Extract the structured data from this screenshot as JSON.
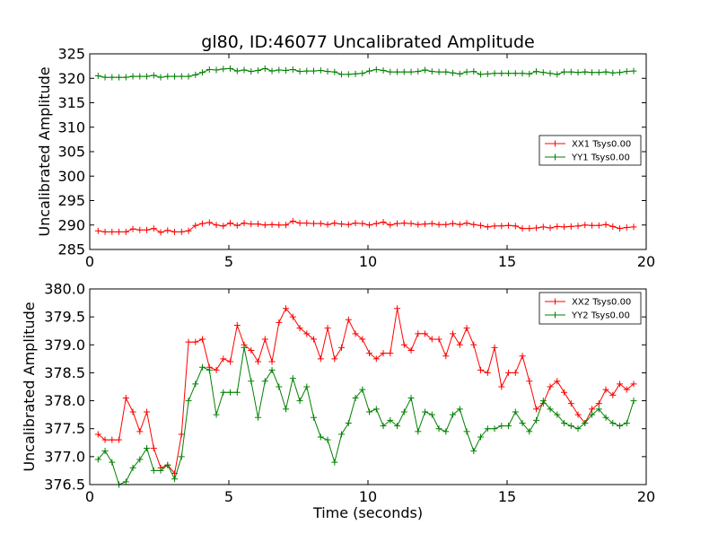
{
  "chart_data": [
    {
      "type": "line",
      "title": "gl80, ID:46077 Uncalibrated Amplitude",
      "xlabel": "",
      "ylabel": "Uncalibrated Amplitude",
      "xlim": [
        0,
        20
      ],
      "ylim": [
        285,
        325
      ],
      "xticks": [
        0,
        5,
        10,
        15,
        20
      ],
      "yticks": [
        285,
        290,
        295,
        300,
        305,
        310,
        315,
        320,
        325
      ],
      "legend": "center-right",
      "marker": "+",
      "grid": false,
      "x": [
        0.3,
        0.55,
        0.8,
        1.05,
        1.3,
        1.55,
        1.8,
        2.05,
        2.3,
        2.55,
        2.8,
        3.05,
        3.3,
        3.55,
        3.8,
        4.05,
        4.3,
        4.55,
        4.8,
        5.05,
        5.3,
        5.55,
        5.8,
        6.05,
        6.3,
        6.55,
        6.8,
        7.05,
        7.3,
        7.55,
        7.8,
        8.05,
        8.3,
        8.55,
        8.8,
        9.05,
        9.3,
        9.55,
        9.8,
        10.05,
        10.3,
        10.55,
        10.8,
        11.05,
        11.3,
        11.55,
        11.8,
        12.05,
        12.3,
        12.55,
        12.8,
        13.05,
        13.3,
        13.55,
        13.8,
        14.05,
        14.3,
        14.55,
        14.8,
        15.05,
        15.3,
        15.55,
        15.8,
        16.05,
        16.3,
        16.55,
        16.8,
        17.05,
        17.3,
        17.55,
        17.8,
        18.05,
        18.3,
        18.55,
        18.8,
        19.05,
        19.3,
        19.55
      ],
      "series": [
        {
          "name": "XX1 Tsys0.00",
          "color": "#ff0000",
          "values": [
            288.8,
            288.6,
            288.6,
            288.6,
            288.6,
            289.2,
            289.0,
            289.0,
            289.3,
            288.5,
            288.9,
            288.6,
            288.6,
            288.8,
            289.9,
            290.3,
            290.5,
            290.0,
            289.8,
            290.4,
            289.9,
            290.4,
            290.2,
            290.2,
            290.0,
            290.1,
            290.0,
            290.0,
            290.8,
            290.4,
            290.4,
            290.3,
            290.3,
            290.1,
            290.4,
            290.2,
            290.1,
            290.4,
            290.3,
            290.0,
            290.3,
            290.6,
            290.0,
            290.3,
            290.4,
            290.3,
            290.1,
            290.2,
            290.3,
            290.1,
            290.1,
            290.3,
            290.1,
            290.4,
            290.1,
            289.9,
            289.6,
            289.8,
            289.8,
            289.9,
            289.8,
            289.3,
            289.3,
            289.4,
            289.6,
            289.4,
            289.7,
            289.6,
            289.7,
            289.8,
            290.0,
            289.9,
            289.9,
            290.1,
            289.7,
            289.3,
            289.5,
            289.6
          ]
        },
        {
          "name": "YY1 Tsys0.00",
          "color": "#008000",
          "values": [
            320.5,
            320.2,
            320.2,
            320.2,
            320.2,
            320.4,
            320.4,
            320.4,
            320.6,
            320.2,
            320.4,
            320.4,
            320.4,
            320.4,
            320.7,
            321.2,
            321.8,
            321.7,
            321.9,
            322.0,
            321.5,
            321.7,
            321.4,
            321.6,
            322.0,
            321.5,
            321.7,
            321.6,
            321.8,
            321.4,
            321.5,
            321.5,
            321.6,
            321.4,
            321.3,
            320.8,
            320.8,
            320.9,
            321.0,
            321.5,
            321.8,
            321.6,
            321.3,
            321.3,
            321.3,
            321.3,
            321.4,
            321.7,
            321.4,
            321.3,
            321.3,
            321.1,
            320.9,
            321.3,
            321.4,
            320.8,
            320.9,
            321.0,
            321.0,
            321.0,
            321.0,
            321.0,
            320.9,
            321.4,
            321.2,
            321.0,
            320.8,
            321.3,
            321.3,
            321.2,
            321.3,
            321.2,
            321.2,
            321.3,
            321.1,
            321.2,
            321.4,
            321.5
          ]
        }
      ]
    },
    {
      "type": "line",
      "title": "",
      "xlabel": "Time (seconds)",
      "ylabel": "Uncalibrated Amplitude",
      "xlim": [
        0,
        20
      ],
      "ylim": [
        376.5,
        380.0
      ],
      "xticks": [
        0,
        5,
        10,
        15,
        20
      ],
      "yticks": [
        376.5,
        377.0,
        377.5,
        378.0,
        378.5,
        379.0,
        379.5,
        380.0
      ],
      "legend": "top-right",
      "marker": "+",
      "grid": false,
      "x": [
        0.3,
        0.55,
        0.8,
        1.05,
        1.3,
        1.55,
        1.8,
        2.05,
        2.3,
        2.55,
        2.8,
        3.05,
        3.3,
        3.55,
        3.8,
        4.05,
        4.3,
        4.55,
        4.8,
        5.05,
        5.3,
        5.55,
        5.8,
        6.05,
        6.3,
        6.55,
        6.8,
        7.05,
        7.3,
        7.55,
        7.8,
        8.05,
        8.3,
        8.55,
        8.8,
        9.05,
        9.3,
        9.55,
        9.8,
        10.05,
        10.3,
        10.55,
        10.8,
        11.05,
        11.3,
        11.55,
        11.8,
        12.05,
        12.3,
        12.55,
        12.8,
        13.05,
        13.3,
        13.55,
        13.8,
        14.05,
        14.3,
        14.55,
        14.8,
        15.05,
        15.3,
        15.55,
        15.8,
        16.05,
        16.3,
        16.55,
        16.8,
        17.05,
        17.3,
        17.55,
        17.8,
        18.05,
        18.3,
        18.55,
        18.8,
        19.05,
        19.3,
        19.55
      ],
      "series": [
        {
          "name": "XX2 Tsys0.00",
          "color": "#ff0000",
          "values": [
            377.4,
            377.3,
            377.3,
            377.3,
            378.05,
            377.8,
            377.45,
            377.8,
            377.15,
            376.8,
            376.85,
            376.7,
            377.4,
            379.05,
            379.05,
            379.1,
            378.6,
            378.55,
            378.75,
            378.7,
            379.35,
            379.0,
            378.9,
            378.7,
            379.1,
            378.7,
            379.4,
            379.65,
            379.5,
            379.3,
            379.2,
            379.1,
            378.75,
            379.3,
            378.75,
            378.95,
            379.45,
            379.2,
            379.1,
            378.85,
            378.75,
            378.85,
            378.85,
            379.65,
            379.0,
            378.9,
            379.2,
            379.2,
            379.1,
            379.1,
            378.8,
            379.2,
            379.0,
            379.3,
            379.0,
            378.55,
            378.5,
            378.95,
            378.25,
            378.5,
            378.5,
            378.8,
            378.35,
            377.85,
            377.95,
            378.25,
            378.35,
            378.15,
            377.95,
            377.75,
            377.6,
            377.85,
            377.95,
            378.2,
            378.1,
            378.3,
            378.2,
            378.3
          ]
        },
        {
          "name": "YY2 Tsys0.00",
          "color": "#008000",
          "values": [
            376.95,
            377.1,
            376.9,
            376.5,
            376.55,
            376.8,
            376.95,
            377.15,
            376.75,
            376.75,
            376.85,
            376.6,
            377.0,
            378.0,
            378.3,
            378.6,
            378.55,
            377.75,
            378.15,
            378.15,
            378.15,
            378.95,
            378.35,
            377.7,
            378.35,
            378.55,
            378.25,
            377.85,
            378.4,
            378.0,
            378.25,
            377.7,
            377.35,
            377.3,
            376.9,
            377.4,
            377.6,
            378.05,
            378.2,
            377.8,
            377.85,
            377.55,
            377.65,
            377.55,
            377.8,
            378.05,
            377.45,
            377.8,
            377.75,
            377.5,
            377.45,
            377.75,
            377.85,
            377.45,
            377.1,
            377.35,
            377.5,
            377.5,
            377.55,
            377.55,
            377.8,
            377.6,
            377.45,
            377.65,
            378.0,
            377.85,
            377.75,
            377.6,
            377.55,
            377.5,
            377.6,
            377.75,
            377.85,
            377.7,
            377.6,
            377.55,
            377.6,
            378.0
          ]
        }
      ]
    }
  ]
}
